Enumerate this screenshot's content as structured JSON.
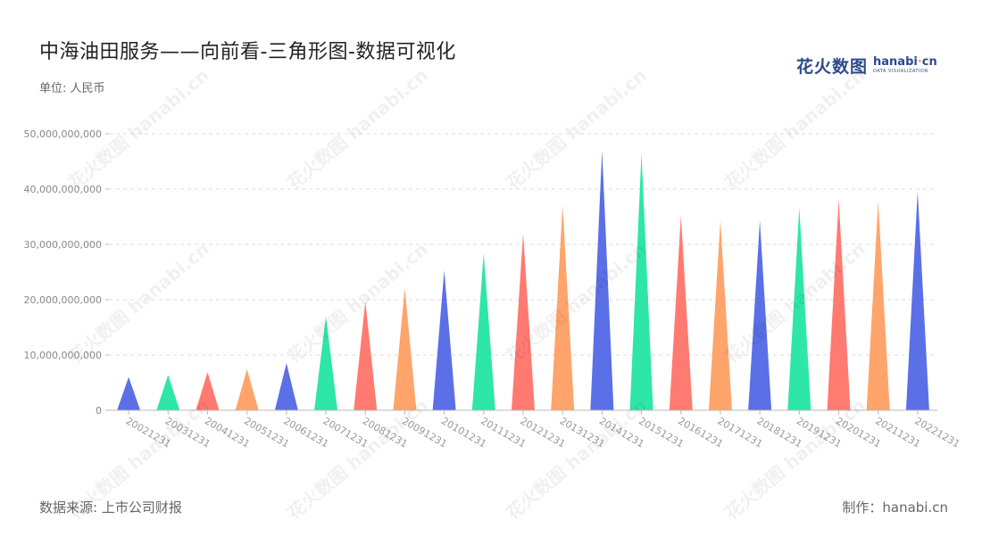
{
  "title": "中海油田服务——向前看-三角形图-数据可视化",
  "unit_label": "单位: 人民币",
  "source": "数据来源: 上市公司财报",
  "credit": "制作：hanabi.cn",
  "logo": {
    "cn": "花火数图",
    "en_main": "hanabi",
    "en_dot": "·",
    "en_tail": "cn",
    "sub": "DATA VISUALIZATION"
  },
  "watermark_text": "花火数图 hanabi.cn",
  "colors": [
    "#5b6fe6",
    "#2ee6a8",
    "#ff7a70",
    "#ffa46b"
  ],
  "chart_data": {
    "type": "bar",
    "marker": "triangle",
    "categories": [
      "20021231",
      "20031231",
      "20041231",
      "20051231",
      "20061231",
      "20071231",
      "20081231",
      "20091231",
      "20101231",
      "20111231",
      "20121231",
      "20131231",
      "20141231",
      "20151231",
      "20161231",
      "20171231",
      "20181231",
      "20191231",
      "20201231",
      "20211231",
      "20221231"
    ],
    "values": [
      6000000000,
      6400000000,
      6900000000,
      7400000000,
      8500000000,
      17000000000,
      19700000000,
      22100000000,
      25300000000,
      28400000000,
      32000000000,
      37100000000,
      47000000000,
      46500000000,
      35200000000,
      34300000000,
      34300000000,
      36600000000,
      38200000000,
      37800000000,
      39600000000
    ],
    "ylim": [
      0,
      50000000000
    ],
    "yticks": [
      "0",
      "10,000,000,000",
      "20,000,000,000",
      "30,000,000,000",
      "40,000,000,000",
      "50,000,000,000"
    ],
    "grid": true,
    "xlabel": "",
    "ylabel": ""
  }
}
